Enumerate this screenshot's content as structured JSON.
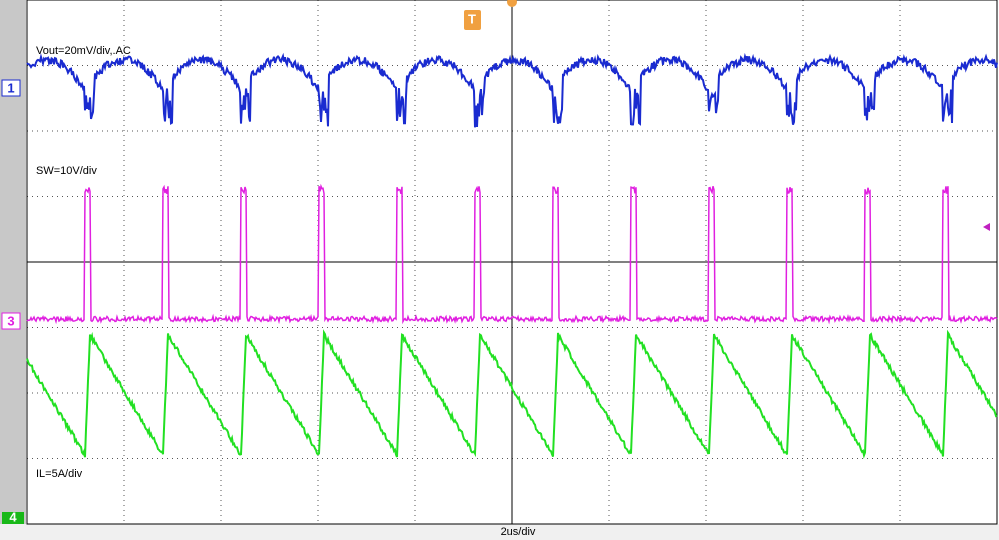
{
  "timebase": "2us/div",
  "trigger": "T",
  "channels": [
    {
      "marker": "1",
      "label": "Vout=20mV/div,.AC"
    },
    {
      "marker": "3",
      "label": "SW=10V/div"
    },
    {
      "marker": "4",
      "label": "IL=5A/div"
    }
  ]
}
